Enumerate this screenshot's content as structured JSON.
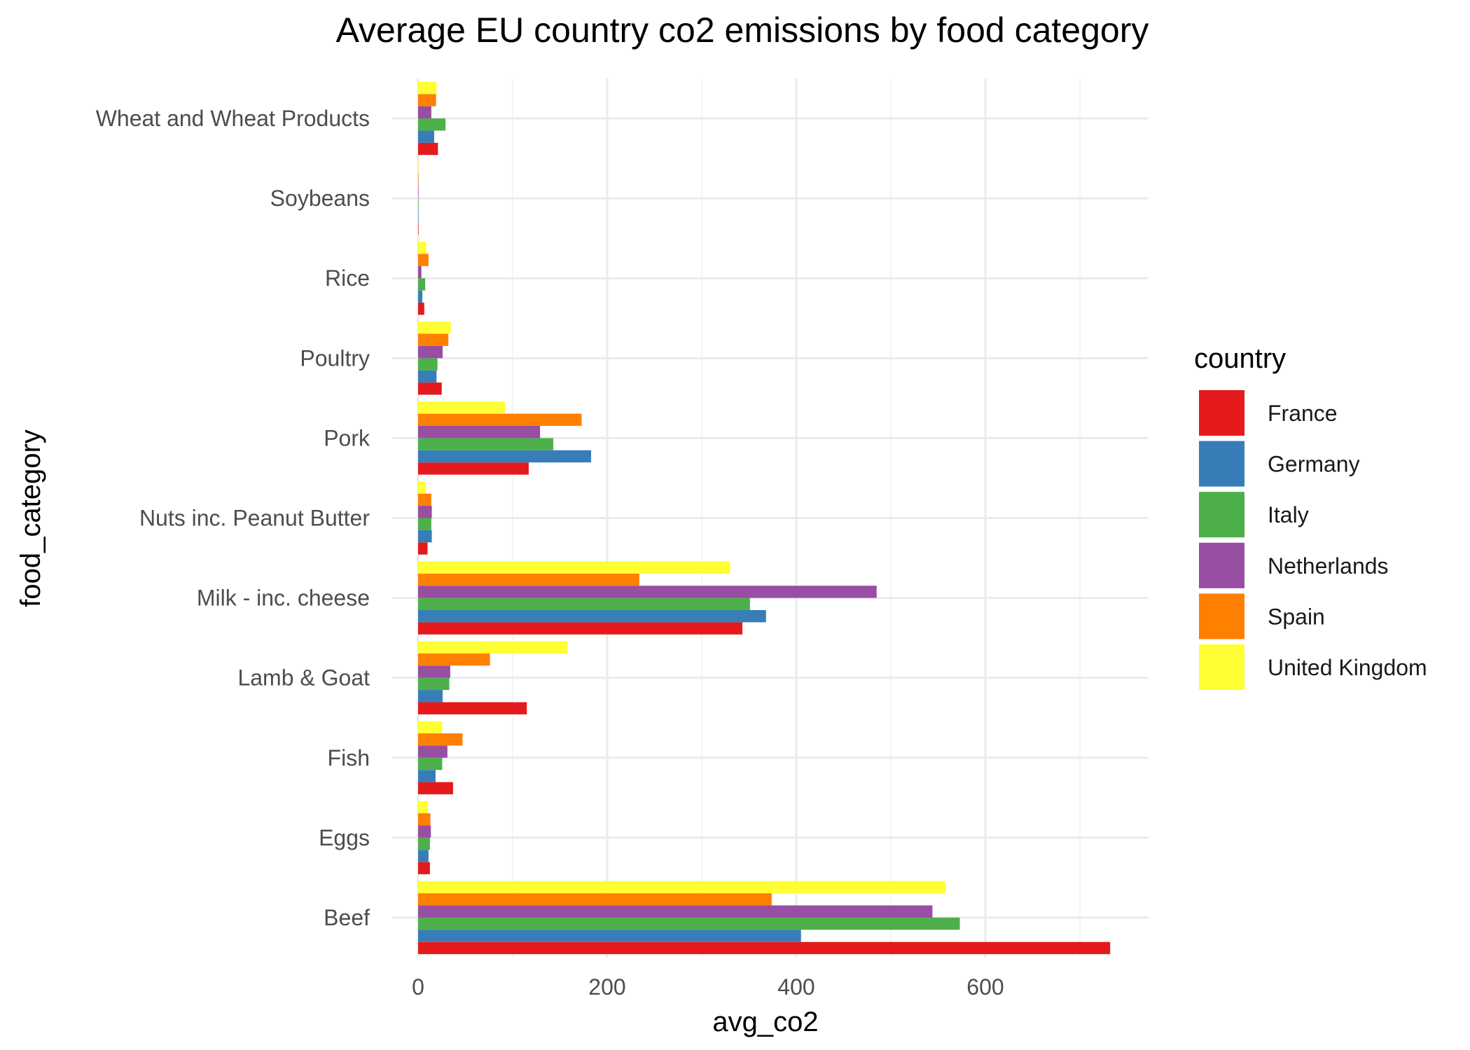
{
  "chart_data": {
    "type": "bar",
    "orientation": "horizontal",
    "title": "Average EU country co2 emissions by food category",
    "xlabel": "avg_co2",
    "ylabel": "food_category",
    "xlim": [
      0,
      770
    ],
    "xticks": [
      0,
      200,
      400,
      600
    ],
    "grid": true,
    "legend_title": "country",
    "legend_position": "right",
    "categories": [
      "Wheat and Wheat Products",
      "Soybeans",
      "Rice",
      "Poultry",
      "Pork",
      "Nuts inc. Peanut Butter",
      "Milk - inc. cheese",
      "Lamb & Goat",
      "Fish",
      "Eggs",
      "Beef"
    ],
    "series": [
      {
        "name": "France",
        "color": "#E41A1C",
        "values": [
          21,
          0.1,
          6.5,
          25,
          117,
          10,
          343,
          115,
          37,
          12.5,
          732
        ]
      },
      {
        "name": "Germany",
        "color": "#377EB8",
        "values": [
          17,
          0.3,
          4.5,
          19.5,
          183,
          14.5,
          368,
          26,
          18.5,
          11,
          405
        ]
      },
      {
        "name": "Italy",
        "color": "#4DAF4A",
        "values": [
          29,
          0.1,
          7.5,
          20.5,
          143,
          14,
          351,
          33,
          25.5,
          12.5,
          573
        ]
      },
      {
        "name": "Netherlands",
        "color": "#984EA3",
        "values": [
          14,
          0.1,
          3.5,
          26,
          129,
          14.5,
          485,
          34,
          31,
          13.5,
          544
        ]
      },
      {
        "name": "Spain",
        "color": "#FF7F00",
        "values": [
          19,
          0.1,
          11,
          32,
          173,
          14,
          234,
          76,
          47,
          13,
          374
        ]
      },
      {
        "name": "United Kingdom",
        "color": "#FFFF33",
        "values": [
          19.5,
          0.1,
          8.5,
          34.5,
          92,
          8,
          330,
          158,
          25.5,
          10.5,
          558
        ]
      }
    ]
  }
}
